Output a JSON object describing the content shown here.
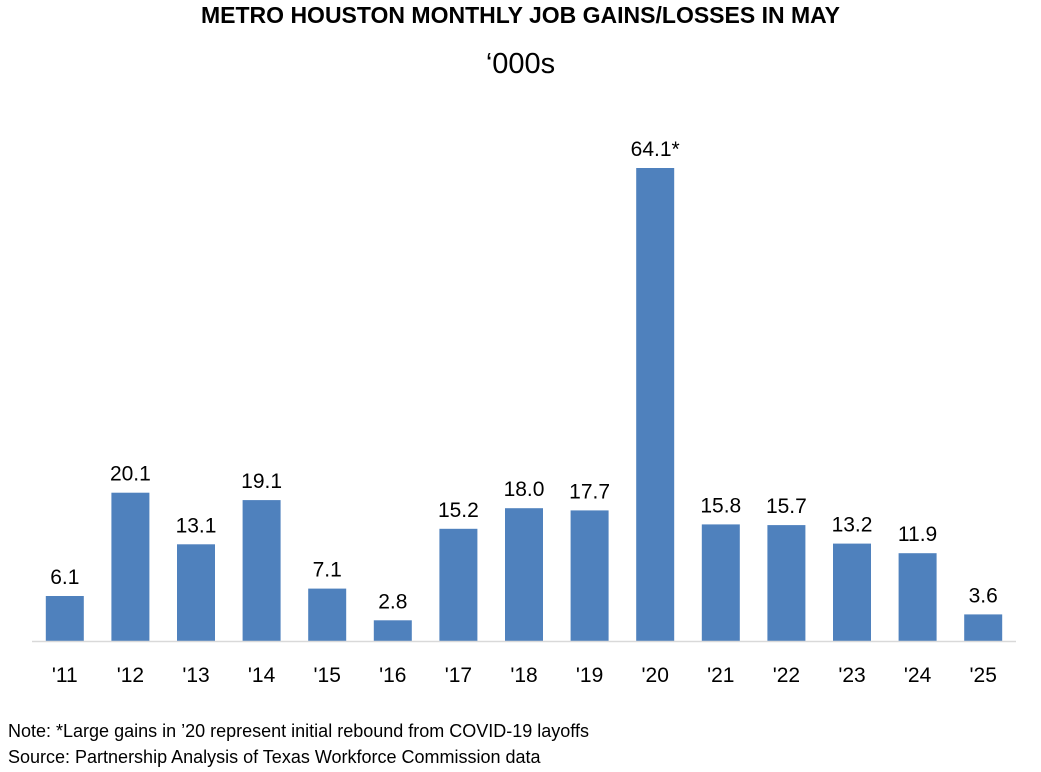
{
  "chart_data": {
    "type": "bar",
    "title": "METRO HOUSTON MONTHLY JOB GAINS/LOSSES IN MAY",
    "subtitle": "‘000s",
    "categories": [
      "'11",
      "'12",
      "'13",
      "'14",
      "'15",
      "'16",
      "'17",
      "'18",
      "'19",
      "'20",
      "'21",
      "'22",
      "'23",
      "'24",
      "'25"
    ],
    "values": [
      6.1,
      20.1,
      13.1,
      19.1,
      7.1,
      2.8,
      15.2,
      18.0,
      17.7,
      64.1,
      15.8,
      15.7,
      13.2,
      11.9,
      3.6
    ],
    "data_labels": [
      "6.1",
      "20.1",
      "13.1",
      "19.1",
      "7.1",
      "2.8",
      "15.2",
      "18.0",
      "17.7",
      "64.1*",
      "15.8",
      "15.7",
      "13.2",
      "11.9",
      "3.6"
    ],
    "ylim": [
      0,
      70
    ],
    "grid": false,
    "bar_color": "#4f81bd",
    "axis_color": "#d9d9d9"
  },
  "notes": {
    "note": "Note: *Large gains in ’20 represent initial rebound from COVID-19 layoffs",
    "source": "Source: Partnership Analysis of Texas Workforce Commission data"
  }
}
